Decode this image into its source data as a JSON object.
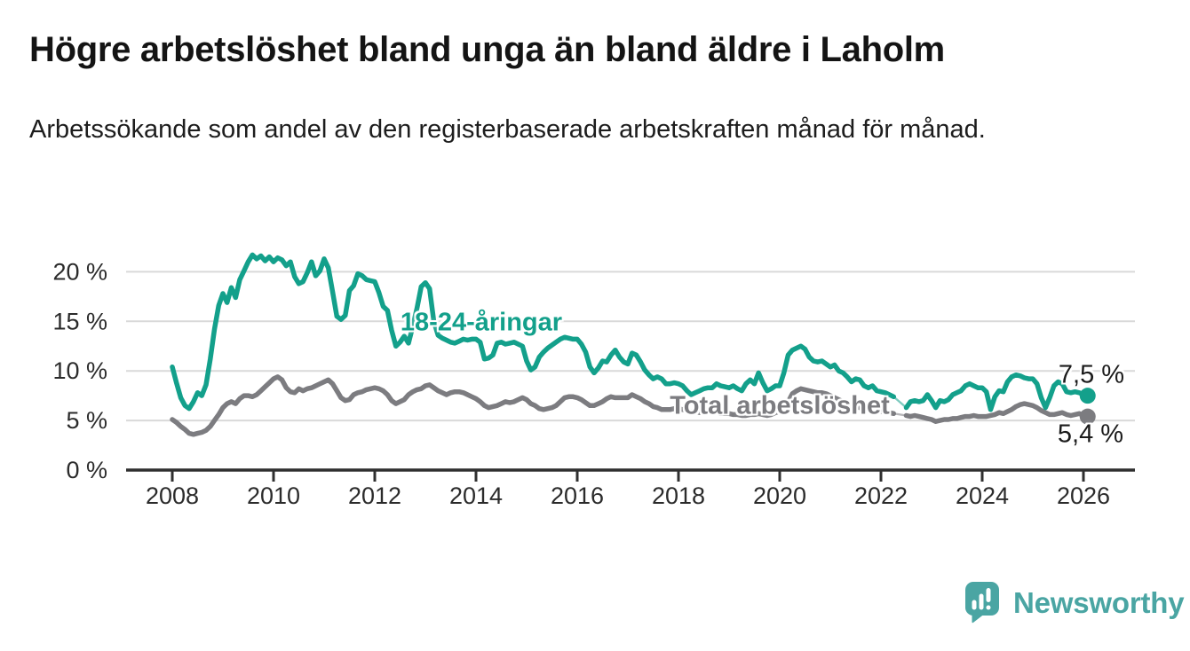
{
  "chart_data": {
    "type": "line",
    "title": "Högre arbetslöshet bland unga än bland äldre i Laholm",
    "subtitle": "Arbetssökande som andel av den registerbaserade arbetskraften månad för månad.",
    "x_unit": "month",
    "x_start": "2008-01",
    "x_end": "2026-02",
    "x_axis_ticks": [
      2008,
      2010,
      2012,
      2014,
      2016,
      2018,
      2020,
      2022,
      2024,
      2026
    ],
    "y_axis_ticks": [
      {
        "value": 0,
        "label": "0 %"
      },
      {
        "value": 5,
        "label": "5 %"
      },
      {
        "value": 10,
        "label": "10 %"
      },
      {
        "value": 15,
        "label": "15 %"
      },
      {
        "value": 20,
        "label": "20 %"
      }
    ],
    "ylim": [
      0,
      22
    ],
    "grid": "horizontal",
    "legend": "direct-line-labels",
    "series": [
      {
        "name": "18-24-åringar",
        "color": "#13a08b",
        "end_label": "7,5 %",
        "end_value": 7.5,
        "values": [
          10.4,
          8.8,
          7.3,
          6.5,
          6.2,
          6.9,
          7.8,
          7.5,
          8.6,
          11.2,
          14.2,
          16.6,
          17.8,
          16.9,
          18.4,
          17.4,
          19.2,
          20.1,
          21.0,
          21.7,
          21.3,
          21.6,
          21.1,
          21.5,
          21.0,
          21.4,
          21.2,
          20.6,
          21.0,
          19.5,
          18.8,
          19.0,
          19.9,
          21.0,
          19.6,
          20.1,
          21.3,
          20.4,
          18.0,
          15.5,
          15.2,
          15.6,
          18.1,
          18.6,
          19.8,
          19.6,
          19.2,
          19.1,
          19.0,
          17.9,
          16.5,
          16.1,
          14.1,
          12.5,
          12.9,
          13.5,
          12.8,
          14.5,
          16.3,
          18.5,
          18.9,
          18.3,
          15.0,
          13.6,
          13.3,
          13.1,
          12.9,
          12.8,
          13.0,
          13.2,
          13.1,
          13.2,
          13.2,
          12.9,
          11.2,
          11.3,
          11.6,
          12.8,
          12.9,
          12.7,
          12.8,
          12.9,
          12.7,
          12.5,
          11.0,
          10.1,
          10.4,
          11.4,
          11.9,
          12.3,
          12.6,
          12.9,
          13.2,
          13.4,
          13.3,
          13.2,
          13.2,
          12.7,
          11.9,
          10.4,
          9.8,
          10.3,
          11.0,
          10.9,
          11.6,
          12.1,
          11.4,
          10.9,
          10.7,
          11.8,
          11.6,
          10.9,
          10.1,
          9.6,
          9.2,
          9.4,
          9.2,
          8.7,
          8.7,
          8.8,
          8.7,
          8.5,
          8.0,
          7.6,
          7.8,
          8.0,
          8.2,
          8.3,
          8.3,
          8.7,
          8.5,
          8.4,
          8.3,
          8.5,
          8.2,
          8.0,
          8.7,
          9.1,
          8.7,
          9.8,
          8.8,
          8.0,
          8.2,
          8.5,
          8.5,
          9.8,
          11.6,
          12.1,
          12.3,
          12.5,
          12.2,
          11.4,
          11.0,
          10.9,
          11.0,
          10.7,
          10.4,
          10.6,
          10.0,
          9.8,
          9.4,
          8.9,
          9.2,
          9.1,
          8.5,
          8.3,
          8.5,
          8.0,
          7.9,
          7.8,
          7.6,
          7.4,
          null,
          null,
          6.3,
          6.9,
          7.0,
          6.9,
          7.0,
          7.6,
          7.0,
          6.3,
          7.0,
          6.9,
          7.1,
          7.6,
          7.8,
          8.0,
          8.5,
          8.7,
          8.5,
          8.3,
          8.3,
          7.9,
          6.1,
          7.4,
          8.0,
          7.9,
          8.9,
          9.4,
          9.6,
          9.5,
          9.3,
          9.2,
          9.2,
          8.7,
          7.3,
          6.3,
          7.3,
          8.5,
          8.9,
          8.7,
          7.9,
          7.8,
          7.9,
          7.8,
          7.6,
          7.5
        ]
      },
      {
        "name": "Total arbetslöshet",
        "color": "#7c7c80",
        "end_label": "5,4 %",
        "end_value": 5.4,
        "values": [
          5.1,
          4.8,
          4.4,
          4.1,
          3.7,
          3.6,
          3.7,
          3.8,
          4.0,
          4.4,
          5.0,
          5.6,
          6.3,
          6.7,
          6.9,
          6.7,
          7.2,
          7.5,
          7.5,
          7.4,
          7.6,
          8.0,
          8.4,
          8.8,
          9.2,
          9.4,
          9.1,
          8.3,
          7.9,
          7.8,
          8.2,
          8.0,
          8.2,
          8.3,
          8.5,
          8.7,
          8.9,
          9.1,
          8.7,
          8.0,
          7.3,
          7.0,
          7.1,
          7.6,
          7.8,
          7.9,
          8.1,
          8.2,
          8.3,
          8.2,
          8.0,
          7.6,
          7.0,
          6.7,
          6.9,
          7.1,
          7.6,
          7.9,
          8.1,
          8.2,
          8.5,
          8.6,
          8.3,
          8.0,
          7.8,
          7.6,
          7.8,
          7.9,
          7.9,
          7.8,
          7.6,
          7.4,
          7.2,
          6.9,
          6.5,
          6.3,
          6.4,
          6.5,
          6.7,
          6.9,
          6.8,
          6.9,
          7.1,
          7.3,
          7.1,
          6.7,
          6.5,
          6.2,
          6.1,
          6.2,
          6.3,
          6.5,
          6.9,
          7.3,
          7.4,
          7.4,
          7.3,
          7.1,
          6.8,
          6.5,
          6.5,
          6.7,
          6.9,
          7.2,
          7.4,
          7.3,
          7.3,
          7.3,
          7.3,
          7.6,
          7.4,
          7.2,
          6.9,
          6.7,
          6.4,
          6.3,
          6.1,
          6.1,
          6.1,
          6.2,
          6.2,
          6.1,
          6.0,
          5.9,
          5.9,
          5.8,
          5.8,
          5.9,
          5.8,
          5.8,
          5.7,
          5.7,
          5.7,
          5.6,
          5.6,
          5.5,
          5.5,
          5.6,
          5.6,
          5.7,
          5.6,
          5.5,
          5.6,
          5.8,
          5.9,
          6.1,
          6.9,
          7.7,
          8.0,
          8.2,
          8.1,
          8.0,
          7.9,
          7.8,
          7.8,
          7.7,
          7.5,
          7.3,
          7.1,
          6.9,
          6.7,
          6.5,
          6.4,
          6.3,
          6.2,
          6.1,
          6.0,
          6.0,
          5.9,
          5.9,
          5.8,
          5.7,
          null,
          null,
          5.5,
          5.4,
          5.5,
          5.4,
          5.3,
          5.2,
          5.1,
          4.9,
          5.0,
          5.1,
          5.1,
          5.2,
          5.2,
          5.3,
          5.4,
          5.4,
          5.5,
          5.4,
          5.4,
          5.4,
          5.5,
          5.6,
          5.8,
          5.7,
          5.9,
          6.1,
          6.4,
          6.6,
          6.7,
          6.6,
          6.5,
          6.3,
          6.0,
          5.8,
          5.6,
          5.6,
          5.7,
          5.8,
          5.6,
          5.5,
          5.6,
          5.7,
          5.5,
          5.4
        ]
      }
    ]
  },
  "branding": {
    "name": "Newsworthy",
    "color": "#4aa5a3",
    "icon": "newsworthy-bubble-bar-chart-icon"
  }
}
